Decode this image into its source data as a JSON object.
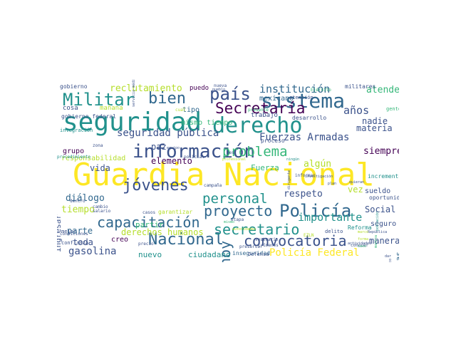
{
  "palette": [
    "#440154",
    "#3b528b",
    "#21918c",
    "#5ec962",
    "#fde725",
    "#31688e",
    "#35b779",
    "#b5de2b"
  ],
  "words": [
    {
      "text": "Guardia Nacional",
      "color": "#fde725"
    },
    {
      "text": "seguridad",
      "color": "#21918c"
    },
    {
      "text": "información",
      "color": "#3b528b"
    },
    {
      "text": "derecho",
      "color": "#21918c"
    },
    {
      "text": "sistema",
      "color": "#31688e"
    },
    {
      "text": "país",
      "color": "#3b528b"
    },
    {
      "text": "Militar",
      "color": "#21918c"
    },
    {
      "text": "bien",
      "color": "#31688e"
    },
    {
      "text": "jóvenes",
      "color": "#3b528b"
    },
    {
      "text": "Policía",
      "color": "#31688e"
    },
    {
      "text": "Secretaría",
      "color": "#440154"
    },
    {
      "text": "problema",
      "color": "#35b779"
    },
    {
      "text": "personal",
      "color": "#21918c"
    },
    {
      "text": "capacitación",
      "color": "#31688e"
    },
    {
      "text": "proyecto",
      "color": "#31688e"
    },
    {
      "text": "Nacional",
      "color": "#31688e"
    },
    {
      "text": "secretario",
      "color": "#21918c"
    },
    {
      "text": "convocatoria",
      "color": "#3b528b"
    },
    {
      "text": "hoy",
      "color": "#31688e"
    },
    {
      "text": "institución",
      "color": "#31688e"
    },
    {
      "text": "Fuerzas Armadas",
      "color": "#3b528b"
    },
    {
      "text": "seguridad pública",
      "color": "#3b528b"
    },
    {
      "text": "reclutamiento",
      "color": "#b5de2b"
    },
    {
      "text": "Policía Federal",
      "color": "#fde725"
    },
    {
      "text": "gasolina",
      "color": "#3b528b"
    },
    {
      "text": "derechos humanos",
      "color": "#b5de2b"
    },
    {
      "text": "importante",
      "color": "#21918c"
    },
    {
      "text": "respeto",
      "color": "#3b528b"
    },
    {
      "text": "elemento",
      "color": "#440154"
    },
    {
      "text": "años",
      "color": "#3b528b"
    },
    {
      "text": "atender",
      "color": "#35b779"
    },
    {
      "text": "paz",
      "color": "#3b528b"
    },
    {
      "text": "toda",
      "color": "#3b528b"
    },
    {
      "text": "parte",
      "color": "#31688e"
    },
    {
      "text": "tiempo",
      "color": "#b5de2b"
    },
    {
      "text": "diálogo",
      "color": "#31688e"
    },
    {
      "text": "vida",
      "color": "#3b528b"
    },
    {
      "text": "siempre",
      "color": "#440154"
    },
    {
      "text": "nadie",
      "color": "#3b528b"
    },
    {
      "text": "materia",
      "color": "#3b528b"
    },
    {
      "text": "algún",
      "color": "#b5de2b"
    },
    {
      "text": "Social",
      "color": "#3b528b"
    },
    {
      "text": "manera",
      "color": "#3b528b"
    },
    {
      "text": "ciudadano",
      "color": "#21918c"
    },
    {
      "text": "nuevo",
      "color": "#21918c"
    },
    {
      "text": "creo",
      "color": "#440154"
    },
    {
      "text": "partir",
      "color": "#35b779"
    },
    {
      "text": "mexicano",
      "color": "#31688e"
    },
    {
      "text": "tipo",
      "color": "#31688e"
    },
    {
      "text": "mismo tiempo",
      "color": "#35b779"
    },
    {
      "text": "grupo",
      "color": "#440154"
    },
    {
      "text": "responsabilidad",
      "color": "#b5de2b"
    },
    {
      "text": "cosa",
      "color": "#3b528b"
    },
    {
      "text": "mañana",
      "color": "#b5de2b"
    },
    {
      "text": "ingresar",
      "color": "#3b528b"
    },
    {
      "text": "vez",
      "color": "#b5de2b"
    },
    {
      "text": "Fuerza",
      "color": "#35b779"
    },
    {
      "text": "sueldo",
      "color": "#3b528b"
    },
    {
      "text": "seguro",
      "color": "#3b528b"
    },
    {
      "text": "diferencias",
      "color": "#31688e"
    },
    {
      "text": "puedo",
      "color": "#440154"
    },
    {
      "text": "trabajo",
      "color": "#3b528b"
    },
    {
      "text": "desarrollo",
      "color": "#3b528b"
    },
    {
      "text": "proceso",
      "color": "#3b528b"
    },
    {
      "text": "inseguridad",
      "color": "#31688e"
    },
    {
      "text": "Defensa",
      "color": "#3b528b"
    },
    {
      "text": "delito",
      "color": "#3b528b"
    },
    {
      "text": "incremento",
      "color": "#21918c"
    },
    {
      "text": "oportunidad",
      "color": "#3b528b"
    },
    {
      "text": "Reforma",
      "color": "#21918c"
    },
    {
      "text": "gobierno federal",
      "color": "#3b528b"
    },
    {
      "text": "integración",
      "color": "#21918c"
    },
    {
      "text": "gobierno",
      "color": "#3b528b"
    },
    {
      "text": "militares",
      "color": "#3b528b"
    },
    {
      "text": "gente",
      "color": "#35b779"
    },
    {
      "text": "atención",
      "color": "#3b528b"
    },
    {
      "text": "garantizar",
      "color": "#b5de2b"
    },
    {
      "text": "etapa",
      "color": "#3b528b"
    },
    {
      "text": "casos",
      "color": "#3b528b"
    },
    {
      "text": "precio",
      "color": "#3b528b"
    },
    {
      "text": "confianza",
      "color": "#3b528b"
    },
    {
      "text": "mejor",
      "color": "#3b528b"
    },
    {
      "text": "condiciones",
      "color": "#3b528b"
    },
    {
      "text": "salario",
      "color": "#3b528b"
    },
    {
      "text": "cambio",
      "color": "#3b528b"
    },
    {
      "text": "dentro",
      "color": "#3b528b"
    },
    {
      "text": "procedimiento",
      "color": "#21918c"
    },
    {
      "text": "policial",
      "color": "#3b528b"
    },
    {
      "text": "investigación",
      "color": "#3b528b"
    },
    {
      "text": "informar",
      "color": "#3b528b"
    },
    {
      "text": "ningún",
      "color": "#21918c"
    },
    {
      "text": "plan",
      "color": "#3b528b"
    },
    {
      "text": "quieran",
      "color": "#3b528b"
    },
    {
      "text": "vestuario",
      "color": "#3b528b"
    },
    {
      "text": "crímenes",
      "color": "#3b528b"
    },
    {
      "text": "preservar",
      "color": "#3b528b"
    },
    {
      "text": "dio",
      "color": "#3b528b"
    },
    {
      "text": "conocer",
      "color": "#3b528b"
    },
    {
      "text": "nueva",
      "color": "#3b528b"
    },
    {
      "text": "pueblo",
      "color": "#3b528b"
    },
    {
      "text": "presente",
      "color": "#35b779"
    },
    {
      "text": "cual",
      "color": "#b5de2b"
    },
    {
      "text": "zona",
      "color": "#3b528b"
    },
    {
      "text": "equipo",
      "color": "#3b528b"
    },
    {
      "text": "Ejército",
      "color": "#35b779"
    },
    {
      "text": "actividades",
      "color": "#3b528b"
    },
    {
      "text": "República",
      "color": "#3b528b"
    },
    {
      "text": "periódico",
      "color": "#3b528b"
    },
    {
      "text": "dar",
      "color": "#3b528b"
    },
    {
      "text": "mes",
      "color": "#3b528b"
    },
    {
      "text": "voz",
      "color": "#3b528b"
    },
    {
      "text": "población",
      "color": "#21918c"
    },
    {
      "text": "servicio médico",
      "color": "#3b528b"
    },
    {
      "text": "dirigente",
      "color": "#3b528b"
    },
    {
      "text": "marina",
      "color": "#35b779"
    },
    {
      "text": "campaña",
      "color": "#3b528b"
    },
    {
      "text": "EZLN",
      "color": "#b5de2b"
    },
    {
      "text": "profesional",
      "color": "#b5de2b"
    },
    {
      "text": "autoridades",
      "color": "#b5de2b"
    },
    {
      "text": "caso",
      "color": "#35b779"
    },
    {
      "text": "mismo",
      "color": "#35b779"
    },
    {
      "text": "marco",
      "color": "#b5de2b"
    },
    {
      "text": "forma",
      "color": "#b5de2b"
    }
  ]
}
